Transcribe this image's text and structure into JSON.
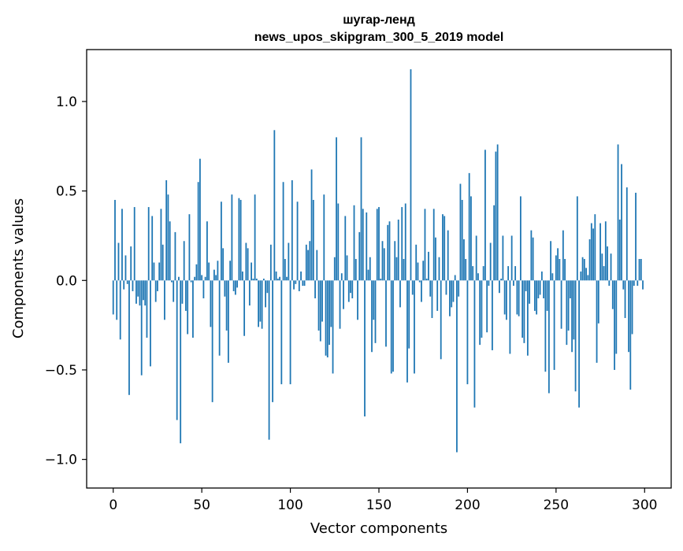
{
  "chart_data": {
    "type": "bar",
    "title_line1": "шугар-ленд",
    "title_line2": "news_upos_skipgram_300_5_2019 model",
    "xlabel": "Vector components",
    "ylabel": "Components values",
    "xlim": [
      -15,
      315
    ],
    "ylim": [
      -1.16,
      1.29
    ],
    "xticks": [
      0,
      50,
      100,
      150,
      200,
      250,
      300
    ],
    "xtick_labels": [
      "0",
      "50",
      "100",
      "150",
      "200",
      "250",
      "300"
    ],
    "yticks": [
      -1.0,
      -0.5,
      0.0,
      0.5,
      1.0
    ],
    "ytick_labels": [
      "−1.0",
      "−0.5",
      "0.0",
      "0.5",
      "1.0"
    ],
    "grid": false,
    "bar_color": "#1f77b4",
    "values": [
      -0.19,
      0.45,
      -0.22,
      0.21,
      -0.33,
      0.4,
      -0.05,
      0.14,
      -0.02,
      -0.64,
      0.19,
      -0.06,
      0.41,
      -0.13,
      -0.09,
      -0.14,
      -0.53,
      -0.11,
      -0.14,
      -0.32,
      0.41,
      -0.48,
      0.36,
      0.1,
      -0.12,
      -0.06,
      0.1,
      0.4,
      0.2,
      -0.22,
      0.56,
      0.48,
      0.33,
      -0.01,
      -0.12,
      0.27,
      -0.78,
      0.02,
      -0.91,
      -0.13,
      0.22,
      -0.17,
      -0.3,
      0.37,
      -0.01,
      -0.32,
      0.02,
      0.09,
      0.55,
      0.68,
      0.03,
      -0.1,
      0.02,
      0.33,
      0.1,
      -0.26,
      -0.68,
      0.06,
      0.03,
      0.11,
      -0.42,
      0.44,
      0.18,
      -0.09,
      -0.28,
      -0.46,
      0.11,
      0.48,
      -0.06,
      -0.08,
      -0.04,
      0.46,
      0.45,
      0.05,
      -0.31,
      0.21,
      0.18,
      -0.14,
      0.1,
      0.01,
      0.48,
      0.01,
      -0.26,
      -0.23,
      -0.27,
      0.01,
      -0.15,
      -0.07,
      -0.89,
      0.2,
      -0.68,
      0.84,
      0.05,
      0.01,
      0.02,
      -0.58,
      0.55,
      0.12,
      0.02,
      0.21,
      -0.58,
      0.56,
      -0.05,
      -0.02,
      0.44,
      -0.06,
      0.05,
      -0.03,
      -0.03,
      0.2,
      0.17,
      0.22,
      0.62,
      0.45,
      -0.1,
      0.17,
      -0.28,
      -0.34,
      -0.23,
      0.48,
      -0.42,
      -0.43,
      -0.36,
      -0.26,
      -0.52,
      0.13,
      0.8,
      0.43,
      -0.27,
      0.04,
      -0.16,
      0.36,
      0.14,
      -0.12,
      -0.07,
      -0.1,
      0.42,
      0.12,
      -0.22,
      0.27,
      0.8,
      0.4,
      -0.76,
      0.38,
      0.06,
      0.13,
      -0.4,
      -0.22,
      -0.35,
      0.4,
      0.41,
      0.01,
      0.22,
      0.18,
      -0.37,
      0.31,
      0.33,
      -0.52,
      -0.51,
      0.22,
      0.13,
      0.34,
      -0.15,
      0.41,
      0.12,
      0.43,
      -0.57,
      -0.38,
      1.18,
      -0.08,
      -0.52,
      0.2,
      0.1,
      -0.01,
      -0.12,
      0.11,
      0.4,
      0.01,
      0.16,
      -0.09,
      -0.21,
      0.4,
      0.24,
      -0.17,
      0.13,
      -0.44,
      0.37,
      0.36,
      -0.08,
      0.28,
      -0.2,
      -0.15,
      -0.12,
      0.03,
      -0.96,
      -0.09,
      0.54,
      0.45,
      0.23,
      0.12,
      -0.58,
      0.6,
      0.47,
      0.08,
      -0.71,
      0.25,
      0.04,
      -0.36,
      -0.32,
      0.08,
      0.73,
      -0.29,
      -0.03,
      0.21,
      -0.39,
      0.42,
      0.72,
      0.76,
      -0.07,
      0.01,
      0.25,
      -0.19,
      -0.22,
      0.08,
      -0.41,
      0.25,
      -0.03,
      0.08,
      -0.19,
      -0.2,
      0.47,
      -0.32,
      -0.35,
      -0.06,
      -0.42,
      -0.13,
      0.28,
      0.24,
      -0.17,
      -0.19,
      -0.1,
      -0.08,
      0.05,
      -0.1,
      -0.51,
      -0.17,
      -0.63,
      0.22,
      0.04,
      -0.5,
      0.14,
      0.18,
      0.12,
      -0.27,
      0.28,
      0.12,
      -0.36,
      -0.28,
      -0.1,
      -0.4,
      -0.33,
      -0.62,
      0.47,
      -0.71,
      0.05,
      0.13,
      0.12,
      0.07,
      0.03,
      0.23,
      0.32,
      0.29,
      0.37,
      -0.46,
      -0.24,
      0.32,
      0.15,
      0.08,
      0.33,
      0.19,
      -0.03,
      0.15,
      -0.16,
      -0.5,
      -0.41,
      0.76,
      0.34,
      0.65,
      -0.05,
      -0.21,
      0.52,
      -0.4,
      -0.61,
      -0.3,
      -0.03,
      0.49,
      -0.03,
      0.12,
      0.12,
      -0.05
    ]
  }
}
